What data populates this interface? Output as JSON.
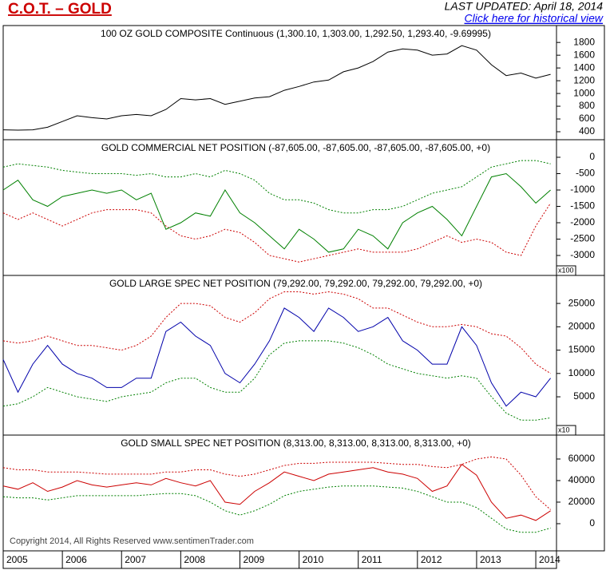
{
  "header": {
    "title": "C.O.T. – GOLD",
    "updated": "LAST UPDATED:  April 18, 2014",
    "link": "Click here for historical view"
  },
  "copyright": "Copyright 2014, All Rights Reserved  www.sentimenTrader.com",
  "chart_data": [
    {
      "type": "line",
      "title": "100 OZ GOLD COMPOSITE Continuous (1,300.10, 1,303.00, 1,292.50, 1,293.40, -9.69995)",
      "x": [
        2005,
        2005.25,
        2005.5,
        2005.75,
        2006,
        2006.25,
        2006.5,
        2006.75,
        2007,
        2007.25,
        2007.5,
        2007.75,
        2008,
        2008.25,
        2008.5,
        2008.75,
        2009,
        2009.25,
        2009.5,
        2009.75,
        2010,
        2010.25,
        2010.5,
        2010.75,
        2011,
        2011.25,
        2011.5,
        2011.75,
        2012,
        2012.25,
        2012.5,
        2012.75,
        2013,
        2013.25,
        2013.5,
        2013.75,
        2014,
        2014.25
      ],
      "xlim": [
        2005,
        2014.35
      ],
      "ylim": [
        275,
        2065
      ],
      "yticks": [
        400,
        600,
        800,
        1000,
        1200,
        1400,
        1600,
        1800
      ],
      "series": [
        {
          "color": "#000000",
          "values": [
            430,
            425,
            430,
            470,
            560,
            650,
            620,
            600,
            650,
            670,
            650,
            750,
            920,
            900,
            920,
            830,
            880,
            930,
            950,
            1050,
            1110,
            1180,
            1210,
            1340,
            1400,
            1500,
            1650,
            1700,
            1680,
            1600,
            1620,
            1750,
            1680,
            1450,
            1280,
            1320,
            1240,
            1300
          ]
        }
      ]
    },
    {
      "type": "line",
      "title": "GOLD COMMERCIAL NET POSITION (-87,605.00, -87,605.00, -87,605.00, -87,605.00, +0)",
      "unit_label": "x100",
      "x": [
        2005,
        2005.25,
        2005.5,
        2005.75,
        2006,
        2006.25,
        2006.5,
        2006.75,
        2007,
        2007.25,
        2007.5,
        2007.75,
        2008,
        2008.25,
        2008.5,
        2008.75,
        2009,
        2009.25,
        2009.5,
        2009.75,
        2010,
        2010.25,
        2010.5,
        2010.75,
        2011,
        2011.25,
        2011.5,
        2011.75,
        2012,
        2012.25,
        2012.5,
        2012.75,
        2013,
        2013.25,
        2013.5,
        2013.75,
        2014,
        2014.25
      ],
      "xlim": [
        2005,
        2014.35
      ],
      "ylim": [
        -3610,
        537
      ],
      "yticks": [
        0,
        -500,
        -1000,
        -1500,
        -2000,
        -2500,
        -3000
      ],
      "series": [
        {
          "color": "#008000",
          "dash": true,
          "values": [
            -300,
            -200,
            -250,
            -300,
            -400,
            -450,
            -500,
            -500,
            -500,
            -550,
            -500,
            -600,
            -600,
            -500,
            -600,
            -400,
            -500,
            -700,
            -1100,
            -1300,
            -1300,
            -1400,
            -1600,
            -1700,
            -1700,
            -1600,
            -1600,
            -1500,
            -1300,
            -1100,
            -1000,
            -900,
            -600,
            -300,
            -200,
            -100,
            -100,
            -200
          ]
        },
        {
          "color": "#cc0000",
          "dash": true,
          "values": [
            -1700,
            -1900,
            -1700,
            -1900,
            -2100,
            -1900,
            -1700,
            -1600,
            -1600,
            -1600,
            -1700,
            -2100,
            -2400,
            -2500,
            -2400,
            -2200,
            -2300,
            -2600,
            -3000,
            -3100,
            -3200,
            -3100,
            -3000,
            -2900,
            -2800,
            -2900,
            -2900,
            -2900,
            -2800,
            -2600,
            -2400,
            -2600,
            -2500,
            -2600,
            -2900,
            -3000,
            -2100,
            -1400
          ]
        },
        {
          "color": "#008000",
          "values": [
            -1000,
            -700,
            -1300,
            -1500,
            -1200,
            -1100,
            -1000,
            -1100,
            -1000,
            -1300,
            -1100,
            -2200,
            -2000,
            -1700,
            -1800,
            -1000,
            -1700,
            -2000,
            -2400,
            -2800,
            -2200,
            -2500,
            -2900,
            -2800,
            -2200,
            -2400,
            -2800,
            -2000,
            -1700,
            -1500,
            -1900,
            -2400,
            -1500,
            -600,
            -500,
            -900,
            -1400,
            -1000
          ]
        }
      ]
    },
    {
      "type": "line",
      "title": "GOLD LARGE SPEC NET POSITION (79,292.00, 79,292.00, 79,292.00, 79,292.00, +0)",
      "unit_label": "x10",
      "x": [
        2005,
        2005.25,
        2005.5,
        2005.75,
        2006,
        2006.25,
        2006.5,
        2006.75,
        2007,
        2007.25,
        2007.5,
        2007.75,
        2008,
        2008.25,
        2008.5,
        2008.75,
        2009,
        2009.25,
        2009.5,
        2009.75,
        2010,
        2010.25,
        2010.5,
        2010.75,
        2011,
        2011.25,
        2011.5,
        2011.75,
        2012,
        2012.25,
        2012.5,
        2012.75,
        2013,
        2013.25,
        2013.5,
        2013.75,
        2014,
        2014.25
      ],
      "xlim": [
        2005,
        2014.35
      ],
      "ylim": [
        -3200,
        31000
      ],
      "yticks": [
        5000,
        10000,
        15000,
        20000,
        25000
      ],
      "series": [
        {
          "color": "#cc0000",
          "dash": true,
          "values": [
            17000,
            16500,
            17000,
            18000,
            17000,
            16000,
            16000,
            15500,
            15000,
            16000,
            18000,
            22000,
            25000,
            25000,
            24500,
            22000,
            21000,
            23000,
            26000,
            27500,
            27500,
            27000,
            27500,
            27000,
            26000,
            24000,
            24000,
            22500,
            21000,
            20000,
            20000,
            20500,
            20000,
            18500,
            18000,
            15500,
            12000,
            10000
          ]
        },
        {
          "color": "#008000",
          "dash": true,
          "values": [
            3000,
            3500,
            5000,
            7000,
            6000,
            5000,
            4500,
            4000,
            5000,
            5500,
            6000,
            8000,
            9000,
            9000,
            7000,
            6000,
            6000,
            9000,
            14000,
            16500,
            17000,
            17000,
            17000,
            16500,
            15500,
            14000,
            12000,
            11000,
            10000,
            9500,
            9000,
            9500,
            9000,
            5000,
            1500,
            0,
            0,
            500
          ]
        },
        {
          "color": "#0000aa",
          "values": [
            13000,
            6000,
            12000,
            16000,
            12000,
            10000,
            9000,
            7000,
            7000,
            9000,
            9000,
            19000,
            21000,
            18000,
            16000,
            10000,
            8000,
            12000,
            17000,
            24000,
            22000,
            19000,
            24000,
            22000,
            19000,
            20000,
            22000,
            17000,
            15000,
            12000,
            12000,
            20000,
            16000,
            8000,
            3000,
            6000,
            5000,
            9000
          ]
        }
      ]
    },
    {
      "type": "line",
      "title": "GOLD SMALL SPEC NET POSITION (8,313.00, 8,313.00, 8,313.00, 8,313.00, +0)",
      "x": [
        2005,
        2005.25,
        2005.5,
        2005.75,
        2006,
        2006.25,
        2006.5,
        2006.75,
        2007,
        2007.25,
        2007.5,
        2007.75,
        2008,
        2008.25,
        2008.5,
        2008.75,
        2009,
        2009.25,
        2009.5,
        2009.75,
        2010,
        2010.25,
        2010.5,
        2010.75,
        2011,
        2011.25,
        2011.5,
        2011.75,
        2012,
        2012.25,
        2012.5,
        2012.75,
        2013,
        2013.25,
        2013.5,
        2013.75,
        2014,
        2014.25
      ],
      "xlim": [
        2005,
        2014.35
      ],
      "xticks": [
        2005,
        2006,
        2007,
        2008,
        2009,
        2010,
        2011,
        2012,
        2013,
        2014
      ],
      "ylim": [
        -25200,
        82200
      ],
      "yticks": [
        0,
        20000,
        40000,
        60000
      ],
      "series": [
        {
          "color": "#cc0000",
          "dash": true,
          "values": [
            52000,
            50000,
            50000,
            48000,
            48000,
            48000,
            47000,
            46000,
            46000,
            46000,
            46000,
            48000,
            48000,
            50000,
            50000,
            46000,
            44000,
            46000,
            50000,
            54000,
            56000,
            56000,
            57000,
            57000,
            57000,
            57000,
            56000,
            55000,
            55000,
            53000,
            52000,
            55000,
            60000,
            62000,
            60000,
            45000,
            25000,
            13000
          ]
        },
        {
          "color": "#008000",
          "dash": true,
          "values": [
            25000,
            24000,
            24000,
            22000,
            24000,
            26000,
            26000,
            26000,
            26000,
            26000,
            27000,
            28000,
            28000,
            26000,
            20000,
            12000,
            8000,
            12000,
            18000,
            26000,
            30000,
            32000,
            34000,
            35000,
            35000,
            35000,
            34000,
            33000,
            30000,
            25000,
            20000,
            20000,
            15000,
            5000,
            -5000,
            -8000,
            -8000,
            -4000
          ]
        },
        {
          "color": "#cc0000",
          "values": [
            35000,
            32000,
            38000,
            30000,
            34000,
            40000,
            36000,
            34000,
            36000,
            38000,
            36000,
            42000,
            38000,
            35000,
            40000,
            20000,
            18000,
            30000,
            38000,
            48000,
            44000,
            40000,
            46000,
            48000,
            50000,
            52000,
            48000,
            46000,
            42000,
            30000,
            35000,
            55000,
            45000,
            20000,
            5000,
            8000,
            3000,
            12000
          ]
        }
      ]
    }
  ]
}
